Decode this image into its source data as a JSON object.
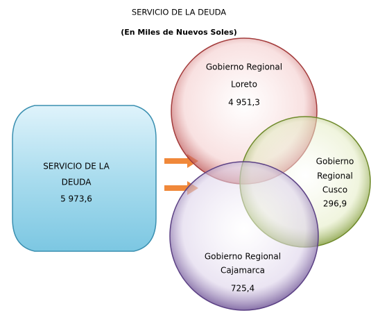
{
  "title": "SERVICIO DE LA DEUDA",
  "subtitle": "(En Miles de Nuevos Soles)",
  "total": {
    "lines": [
      "SERVICIO DE LA",
      "DEUDA"
    ],
    "value": "5  973,6"
  },
  "nodes": [
    {
      "lines": [
        "Gobierno Regional",
        "Loreto"
      ],
      "value": "4 951,3"
    },
    {
      "lines": [
        "Gobierno",
        "Regional",
        "Cusco"
      ],
      "value": "296,9"
    },
    {
      "lines": [
        "Gobierno Regional",
        "Cajamarca"
      ],
      "value": "725,4"
    }
  ]
}
